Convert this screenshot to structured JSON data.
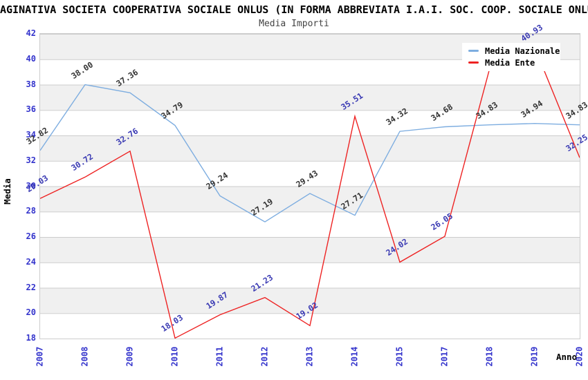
{
  "header": {
    "title": "AGINATIVA SOCIETA COOPERATIVA SOCIALE ONLUS (IN FORMA ABBREVIATA I.A.I. SOC. COOP. SOCIALE ONLU",
    "subtitle": "Media Importi"
  },
  "axes": {
    "x_title": "Anno",
    "y_title": "Media",
    "y_ticks": [
      42,
      40,
      38,
      36,
      34,
      32,
      30,
      28,
      26,
      24,
      22,
      20,
      18
    ],
    "tick_color": "#3333cc",
    "gridline_color": "#cccccc",
    "band_color": "#f0f0f0"
  },
  "legend": {
    "items": [
      {
        "label": "Media Nazionale",
        "color": "#7dade0"
      },
      {
        "label": "Media Ente",
        "color": "#ee2222"
      }
    ]
  },
  "chart_data": {
    "type": "line",
    "title": "Media Importi",
    "xlabel": "Anno",
    "ylabel": "Media",
    "ylim": [
      18,
      42
    ],
    "grid": "horizontal",
    "legend_position": "top-right",
    "x": [
      "2007",
      "2008",
      "2009",
      "2010",
      "2011",
      "2012",
      "2013",
      "2014",
      "2015",
      "2017",
      "2018",
      "2019",
      "2020"
    ],
    "series": [
      {
        "name": "Media Nazionale",
        "color": "#7dade0",
        "label_color": "#333333",
        "values": [
          32.82,
          38.0,
          37.36,
          34.79,
          29.24,
          27.19,
          29.43,
          27.71,
          34.32,
          34.68,
          34.83,
          34.94,
          34.83
        ],
        "labels": [
          "32.82",
          "38.00",
          "37.36",
          "34.79",
          "29.24",
          "27.19",
          "29.43",
          "27.71",
          "34.32",
          "34.68",
          "34.83",
          "34.94",
          "34.83"
        ]
      },
      {
        "name": "Media Ente",
        "color": "#ee2222",
        "label_color": "#3939b3",
        "values": [
          29.03,
          30.72,
          32.76,
          18.03,
          19.87,
          21.23,
          19.02,
          35.51,
          24.02,
          26.05,
          39.3,
          40.93,
          32.25
        ],
        "labels": [
          "29.03",
          "30.72",
          "32.76",
          "18.03",
          "19.87",
          "21.23",
          "19.02",
          "35.51",
          "24.02",
          "26.05",
          "",
          "40.93",
          "32.25"
        ]
      }
    ]
  }
}
